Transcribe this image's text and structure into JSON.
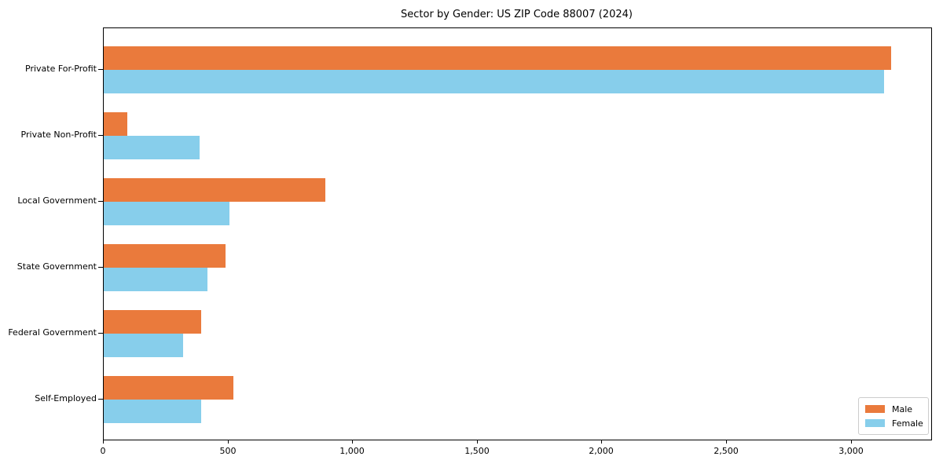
{
  "chart_data": {
    "type": "bar",
    "orientation": "horizontal",
    "title": "Sector by Gender: US ZIP Code 88007 (2024)",
    "categories": [
      "Private For-Profit",
      "Private Non-Profit",
      "Local Government",
      "State Government",
      "Federal Government",
      "Self-Employed"
    ],
    "series": [
      {
        "name": "Male",
        "color": "#EA7A3C",
        "values": [
          3160,
          95,
          890,
          490,
          390,
          520
        ]
      },
      {
        "name": "Female",
        "color": "#87CEEB",
        "values": [
          3130,
          385,
          505,
          415,
          320,
          390
        ]
      }
    ],
    "xlabel": "",
    "ylabel": "",
    "xlim": [
      0,
      3320
    ],
    "xticks": [
      0,
      500,
      1000,
      1500,
      2000,
      2500,
      3000
    ],
    "xtick_labels": [
      "0",
      "500",
      "1,000",
      "1,500",
      "2,000",
      "2,500",
      "3,000"
    ],
    "grid": false,
    "legend_position": "lower right",
    "background_color": "#ffffff",
    "text_color": "#000000"
  }
}
